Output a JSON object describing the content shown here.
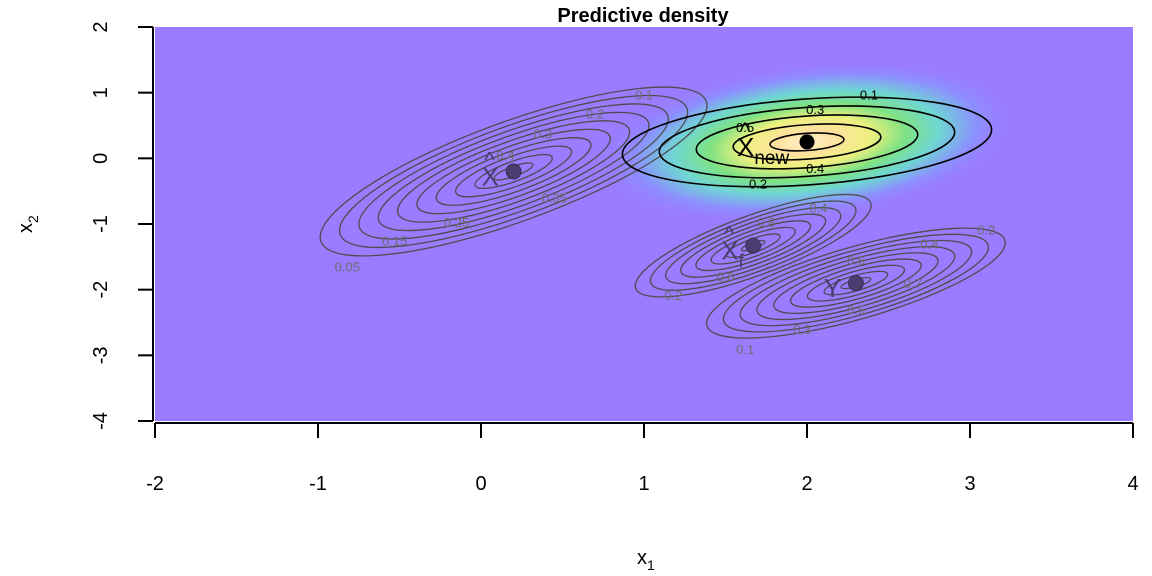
{
  "chart_data": {
    "type": "contour",
    "title": "Predictive density",
    "xlabel": {
      "base": "x",
      "sub": "1"
    },
    "ylabel": {
      "base": "x",
      "sub": "2"
    },
    "xlim": [
      -2,
      4
    ],
    "ylim": [
      -4,
      2
    ],
    "xticks": [
      "-2",
      "-1",
      "0",
      "1",
      "2",
      "3",
      "4"
    ],
    "yticks": [
      "-4",
      "-3",
      "-2",
      "-1",
      "0",
      "1",
      "2"
    ],
    "background_color": "#9b7bff",
    "heatmap_peak": {
      "x": 2.0,
      "y": 0.25
    },
    "grey_color": "#4d4d4d",
    "black_color": "#000000",
    "distributions": [
      {
        "name": "X",
        "point_label": "X",
        "label_hat": true,
        "center": [
          0.2,
          -0.2
        ],
        "style": "grey",
        "contour_labels": [
          {
            "text": "0.1",
            "x": 1.0,
            "y": 0.97
          },
          {
            "text": "0.2",
            "x": 0.7,
            "y": 0.68
          },
          {
            "text": "0.3",
            "x": 0.38,
            "y": 0.38
          },
          {
            "text": "0.4",
            "x": 0.15,
            "y": 0.05
          },
          {
            "text": "0.35",
            "x": 0.45,
            "y": -0.6
          },
          {
            "text": "0.25",
            "x": -0.15,
            "y": -0.97
          },
          {
            "text": "0.15",
            "x": -0.53,
            "y": -1.25
          },
          {
            "text": "0.05",
            "x": -0.82,
            "y": -1.65
          }
        ]
      },
      {
        "name": "Xf",
        "point_label": "X",
        "point_label_sub": "f",
        "label_hat": true,
        "center": [
          1.67,
          -1.33
        ],
        "style": "grey",
        "contour_labels": [
          {
            "text": "0.4",
            "x": 2.07,
            "y": -0.75
          },
          {
            "text": "0.8",
            "x": 1.75,
            "y": -0.97
          },
          {
            "text": "0.6",
            "x": 1.5,
            "y": -1.8
          },
          {
            "text": "0.2",
            "x": 1.18,
            "y": -2.08
          }
        ]
      },
      {
        "name": "Y",
        "point_label": "Y",
        "label_hat": false,
        "center": [
          2.3,
          -1.9
        ],
        "style": "grey",
        "contour_labels": [
          {
            "text": "0.2",
            "x": 3.1,
            "y": -1.08
          },
          {
            "text": "0.4",
            "x": 2.75,
            "y": -1.3
          },
          {
            "text": "0.6",
            "x": 2.3,
            "y": -1.55
          },
          {
            "text": "0.7",
            "x": 2.65,
            "y": -1.9
          },
          {
            "text": "0.5",
            "x": 2.3,
            "y": -2.3
          },
          {
            "text": "0.3",
            "x": 1.97,
            "y": -2.6
          },
          {
            "text": "0.1",
            "x": 1.62,
            "y": -2.9
          }
        ]
      },
      {
        "name": "Xnew",
        "point_label": "X",
        "point_label_sub": "new",
        "label_hat": true,
        "center": [
          2.0,
          0.25
        ],
        "style": "black",
        "contour_labels": [
          {
            "text": "0.1",
            "x": 2.38,
            "y": 0.97
          },
          {
            "text": "0.3",
            "x": 2.05,
            "y": 0.75
          },
          {
            "text": "0.5",
            "x": 1.62,
            "y": 0.48
          },
          {
            "text": "0.4",
            "x": 2.05,
            "y": -0.15
          },
          {
            "text": "0.2",
            "x": 1.7,
            "y": -0.38
          }
        ]
      }
    ]
  }
}
